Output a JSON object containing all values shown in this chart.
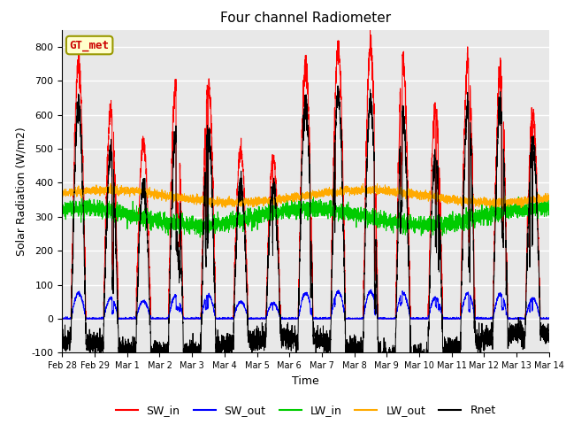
{
  "title": "Four channel Radiometer",
  "xlabel": "Time",
  "ylabel": "Solar Radiation (W/m2)",
  "ylim": [
    -100,
    850
  ],
  "yticks": [
    -100,
    0,
    100,
    200,
    300,
    400,
    500,
    600,
    700,
    800
  ],
  "date_labels": [
    "Feb 28",
    "Feb 29",
    "Mar 1",
    "Mar 2",
    "Mar 3",
    "Mar 4",
    "Mar 5",
    "Mar 6",
    "Mar 7",
    "Mar 8",
    "Mar 9",
    "Mar 10",
    "Mar 11",
    "Mar 12",
    "Mar 13",
    "Mar 14"
  ],
  "station_label": "GT_met",
  "colors": {
    "SW_in": "#ff0000",
    "SW_out": "#0000ff",
    "LW_in": "#00cc00",
    "LW_out": "#ffaa00",
    "Rnet": "#000000"
  },
  "bg_color": "#ffffff",
  "plot_bg_color": "#e8e8e8",
  "n_days": 15,
  "pts_per_day": 288,
  "sw_peaks": [
    750,
    610,
    520,
    690,
    690,
    500,
    470,
    750,
    800,
    810,
    760,
    620,
    750,
    720,
    600
  ]
}
